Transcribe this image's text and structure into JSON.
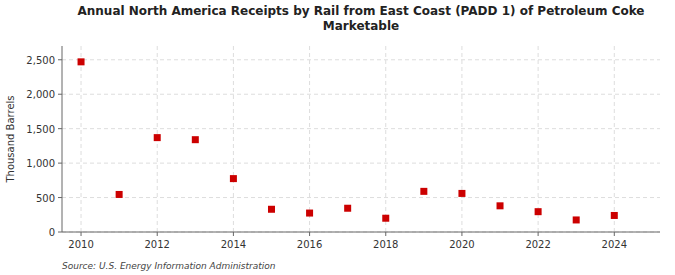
{
  "chart_data": {
    "type": "scatter",
    "title": "Annual North America Receipts by Rail from East Coast (PADD 1) of Petroleum Coke\nMarketable",
    "y_label": "Thousand Barrels",
    "source": "Source: U.S. Energy Information Administration",
    "x": [
      2010,
      2011,
      2012,
      2013,
      2014,
      2015,
      2016,
      2017,
      2018,
      2019,
      2020,
      2021,
      2022,
      2023,
      2024
    ],
    "values": [
      2470,
      545,
      1370,
      1340,
      775,
      330,
      275,
      345,
      200,
      590,
      560,
      380,
      295,
      175,
      240
    ],
    "color": "#cc0000",
    "marker": "square",
    "xlim": [
      2009.5,
      2025.2
    ],
    "xticks": [
      2010,
      2012,
      2014,
      2016,
      2018,
      2020,
      2022,
      2024
    ],
    "ylim": [
      0,
      2700
    ],
    "yticks": [
      0,
      500,
      {
        "value": 1000,
        "label": "1,000"
      },
      {
        "value": 1500,
        "label": "1,500"
      },
      {
        "value": 2000,
        "label": "2,000"
      },
      {
        "value": 2500,
        "label": "2,500"
      }
    ],
    "grid": true
  }
}
